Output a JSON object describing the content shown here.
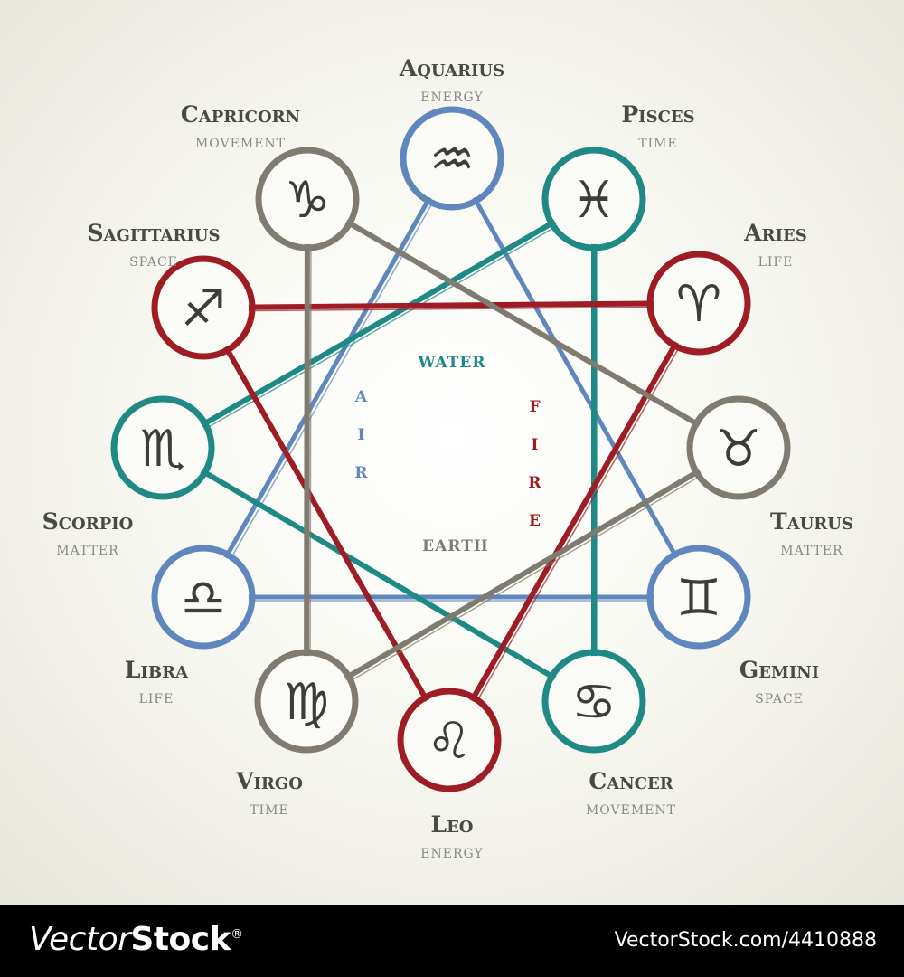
{
  "signs": [
    {
      "id": "aquarius",
      "name": "Aquarius",
      "quality": "ENERGY",
      "glyph": "♒",
      "element": "air"
    },
    {
      "id": "pisces",
      "name": "Pisces",
      "quality": "TIME",
      "glyph": "♓",
      "element": "water"
    },
    {
      "id": "aries",
      "name": "Aries",
      "quality": "LIFE",
      "glyph": "♈",
      "element": "fire"
    },
    {
      "id": "taurus",
      "name": "Taurus",
      "quality": "MATTER",
      "glyph": "♉",
      "element": "earth"
    },
    {
      "id": "gemini",
      "name": "Gemini",
      "quality": "SPACE",
      "glyph": "♊",
      "element": "air"
    },
    {
      "id": "cancer",
      "name": "Cancer",
      "quality": "MOVEMENT",
      "glyph": "♋",
      "element": "water"
    },
    {
      "id": "leo",
      "name": "Leo",
      "quality": "ENERGY",
      "glyph": "♌",
      "element": "fire"
    },
    {
      "id": "virgo",
      "name": "Virgo",
      "quality": "TIME",
      "glyph": "♍",
      "element": "earth"
    },
    {
      "id": "libra",
      "name": "Libra",
      "quality": "LIFE",
      "glyph": "♎",
      "element": "air"
    },
    {
      "id": "scorpio",
      "name": "Scorpio",
      "quality": "MATTER",
      "glyph": "♏",
      "element": "water"
    },
    {
      "id": "sagittarius",
      "name": "Sagittarius",
      "quality": "SPACE",
      "glyph": "♐",
      "element": "fire"
    },
    {
      "id": "capricorn",
      "name": "Capricorn",
      "quality": "MOVEMENT",
      "glyph": "♑",
      "element": "earth"
    }
  ],
  "elements": {
    "water": {
      "label": "WATER",
      "color": "#1f8a85"
    },
    "fire": {
      "label": "FIRE",
      "color": "#9e1c24"
    },
    "air": {
      "label": "AIR",
      "color": "#5f86bd"
    },
    "earth": {
      "label": "EARTH",
      "color": "#807b70"
    }
  },
  "footer": {
    "brand_light": "Vector",
    "brand_bold": "Stock",
    "brand_suffix": "®",
    "stock_id": "VectorStock.com/4410888"
  }
}
